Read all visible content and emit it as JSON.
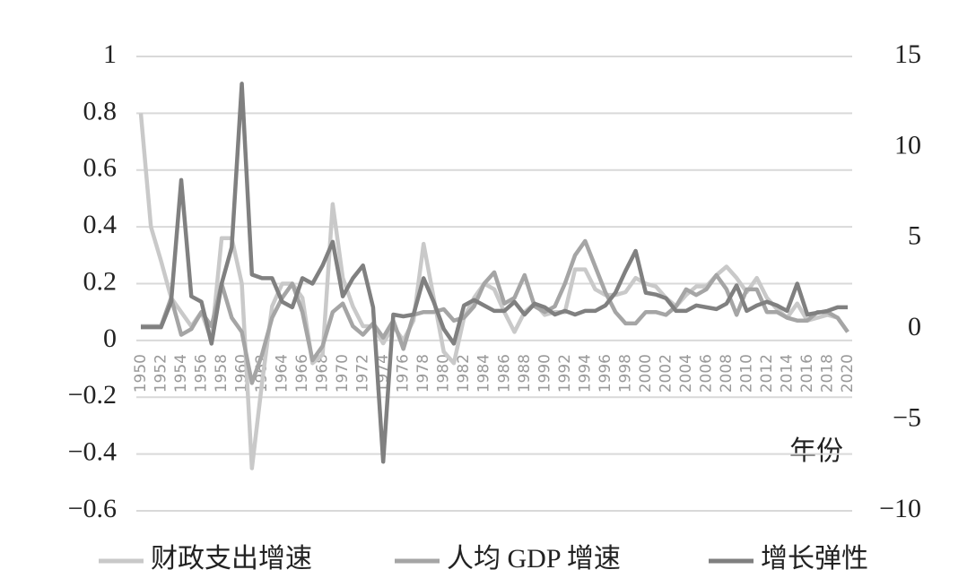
{
  "chart_data": {
    "type": "line",
    "x": [
      1950,
      1951,
      1952,
      1953,
      1954,
      1955,
      1956,
      1957,
      1958,
      1959,
      1960,
      1961,
      1962,
      1963,
      1964,
      1965,
      1966,
      1967,
      1968,
      1969,
      1970,
      1971,
      1972,
      1973,
      1974,
      1975,
      1976,
      1977,
      1978,
      1979,
      1980,
      1981,
      1982,
      1983,
      1984,
      1985,
      1986,
      1987,
      1988,
      1989,
      1990,
      1991,
      1992,
      1993,
      1994,
      1995,
      1996,
      1997,
      1998,
      1999,
      2000,
      2001,
      2002,
      2003,
      2004,
      2005,
      2006,
      2007,
      2008,
      2009,
      2010,
      2011,
      2012,
      2013,
      2014,
      2015,
      2016,
      2017,
      2018,
      2019,
      2020
    ],
    "xlim": [
      1950,
      2020
    ],
    "xticks": [
      1950,
      1952,
      1954,
      1956,
      1958,
      1960,
      1962,
      1964,
      1966,
      1968,
      1970,
      1972,
      1974,
      1976,
      1978,
      1980,
      1982,
      1984,
      1986,
      1988,
      1990,
      1992,
      1994,
      1996,
      1998,
      2000,
      2002,
      2004,
      2006,
      2008,
      2010,
      2012,
      2014,
      2016,
      2018,
      2020
    ],
    "xlabel": "年份",
    "series": [
      {
        "name": "财政支出增速",
        "color": "#c9c9c9",
        "axis": "y",
        "values": [
          0.8,
          0.4,
          0.28,
          0.15,
          0.1,
          0.05,
          0.1,
          0.0,
          0.36,
          0.36,
          0.2,
          -0.45,
          -0.15,
          0.12,
          0.2,
          0.2,
          0.15,
          -0.08,
          -0.05,
          0.48,
          0.22,
          0.12,
          0.05,
          0.05,
          -0.01,
          0.05,
          0.0,
          0.07,
          0.34,
          0.15,
          -0.04,
          -0.08,
          0.08,
          0.15,
          0.2,
          0.18,
          0.1,
          0.03,
          0.1,
          0.13,
          0.09,
          0.1,
          0.1,
          0.25,
          0.25,
          0.18,
          0.16,
          0.16,
          0.17,
          0.22,
          0.2,
          0.19,
          0.15,
          0.12,
          0.16,
          0.19,
          0.19,
          0.23,
          0.26,
          0.22,
          0.17,
          0.22,
          0.15,
          0.11,
          0.08,
          0.13,
          0.07,
          0.08,
          0.09,
          0.08,
          0.03
        ]
      },
      {
        "name": "人均 GDP 增速",
        "color": "#a5a5a5",
        "axis": "y",
        "values": [
          0.05,
          0.05,
          0.05,
          0.15,
          0.02,
          0.04,
          0.1,
          0.05,
          0.2,
          0.08,
          0.03,
          -0.15,
          -0.05,
          0.08,
          0.15,
          0.2,
          0.1,
          -0.07,
          -0.02,
          0.1,
          0.13,
          0.05,
          0.02,
          0.06,
          0.01,
          0.07,
          -0.03,
          0.09,
          0.1,
          0.1,
          0.11,
          0.07,
          0.08,
          0.12,
          0.2,
          0.24,
          0.13,
          0.15,
          0.23,
          0.12,
          0.1,
          0.12,
          0.2,
          0.3,
          0.35,
          0.26,
          0.17,
          0.1,
          0.06,
          0.06,
          0.1,
          0.1,
          0.09,
          0.12,
          0.18,
          0.16,
          0.18,
          0.23,
          0.18,
          0.09,
          0.18,
          0.18,
          0.1,
          0.1,
          0.08,
          0.07,
          0.07,
          0.1,
          0.1,
          0.08,
          0.03
        ]
      },
      {
        "name": "增长弹性",
        "color": "#808080",
        "axis": "y2",
        "values": [
          0.1,
          0.1,
          0.1,
          1.5,
          8.2,
          1.8,
          1.5,
          -0.8,
          2.5,
          4.5,
          13.5,
          3,
          2.8,
          2.8,
          1.5,
          1.2,
          2.8,
          2.5,
          3.5,
          4.8,
          1.8,
          2.8,
          3.5,
          1.2,
          -7.3,
          0.8,
          0.7,
          0.8,
          2.8,
          1.5,
          0.0,
          -0.8,
          1.3,
          1.6,
          1.3,
          1.0,
          1.0,
          1.5,
          0.8,
          1.4,
          1.2,
          0.8,
          1.0,
          0.8,
          1.0,
          1.0,
          1.3,
          2.0,
          3.2,
          4.3,
          2.0,
          1.9,
          1.7,
          1.0,
          1.0,
          1.3,
          1.2,
          1.1,
          1.4,
          2.4,
          1.0,
          1.3,
          1.5,
          1.3,
          1.0,
          2.5,
          0.8,
          0.9,
          1.0,
          1.2,
          1.2
        ]
      }
    ],
    "ylim": [
      -0.6,
      1
    ],
    "yticks": [
      {
        "value": -0.6,
        "label": "−0.6"
      },
      {
        "value": -0.4,
        "label": "−0.4"
      },
      {
        "value": -0.2,
        "label": "−0.2"
      },
      0,
      0.2,
      0.4,
      0.6,
      0.8,
      1
    ],
    "y2lim": [
      -10,
      15
    ],
    "y2ticks": [
      {
        "value": -10,
        "label": "−10"
      },
      {
        "value": -5,
        "label": "−5"
      },
      0,
      5,
      10,
      15
    ],
    "grid": true,
    "legend": "bottom"
  }
}
